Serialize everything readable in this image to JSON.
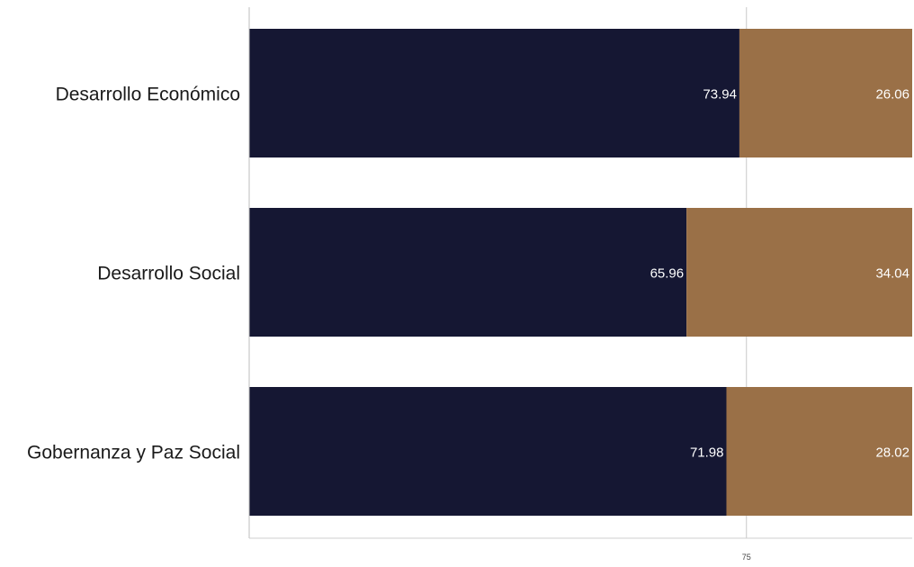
{
  "chart_data": {
    "type": "bar",
    "orientation": "horizontal",
    "stacked": true,
    "categories": [
      "Desarrollo Económico",
      "Desarrollo Social",
      "Gobernanza y Paz Social"
    ],
    "series": [
      {
        "values": [
          73.94,
          65.96,
          71.98
        ],
        "color": "#151733"
      },
      {
        "values": [
          26.06,
          34.04,
          28.02
        ],
        "color": "#9a7047"
      }
    ],
    "data_labels": {
      "series_0": [
        "73.94",
        "65.96",
        "71.98"
      ],
      "series_1": [
        "26.06",
        "34.04",
        "28.02"
      ]
    },
    "xlim": [
      0,
      100
    ],
    "x_ticks": [
      75
    ],
    "x_tick_labels": [
      "75"
    ],
    "title": "",
    "xlabel": "",
    "ylabel": "",
    "grid": "vertical line at 75",
    "legend": "none",
    "label_color": "#ffffff"
  }
}
